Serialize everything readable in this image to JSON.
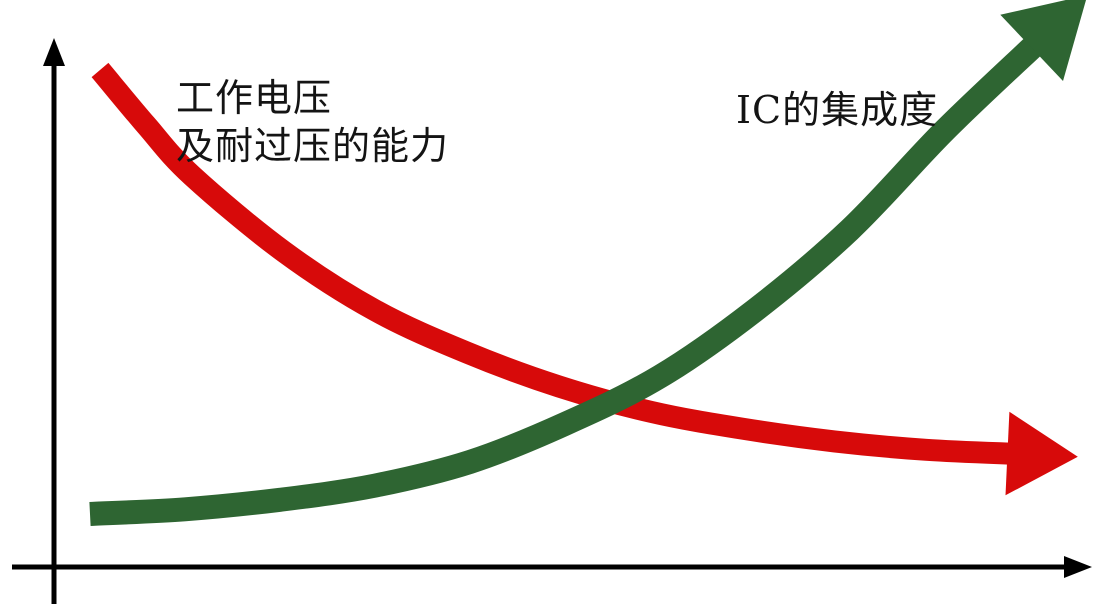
{
  "chart_data": {
    "type": "line",
    "title": "",
    "xlabel": "",
    "ylabel": "",
    "axis_ticks": false,
    "series": [
      {
        "name": "工作电压及耐过压的能力",
        "label_lines": [
          "工作电压",
          "及耐过压的能力"
        ],
        "color": "#d70a0a",
        "trend": "decreasing",
        "x": [
          0.0,
          0.05,
          0.1,
          0.2,
          0.3,
          0.4,
          0.5,
          0.6,
          0.7,
          0.8,
          0.9,
          1.0
        ],
        "y": [
          1.0,
          0.87,
          0.75,
          0.57,
          0.43,
          0.33,
          0.25,
          0.19,
          0.15,
          0.12,
          0.1,
          0.09
        ]
      },
      {
        "name": "IC的集成度",
        "label_lines": [
          "IC的集成度"
        ],
        "color": "#2e6532",
        "trend": "increasing",
        "x": [
          0.0,
          0.1,
          0.2,
          0.3,
          0.4,
          0.5,
          0.6,
          0.7,
          0.8,
          0.9,
          1.0
        ],
        "y": [
          0.0,
          0.01,
          0.03,
          0.06,
          0.11,
          0.19,
          0.29,
          0.43,
          0.6,
          0.81,
          1.0
        ]
      }
    ]
  }
}
